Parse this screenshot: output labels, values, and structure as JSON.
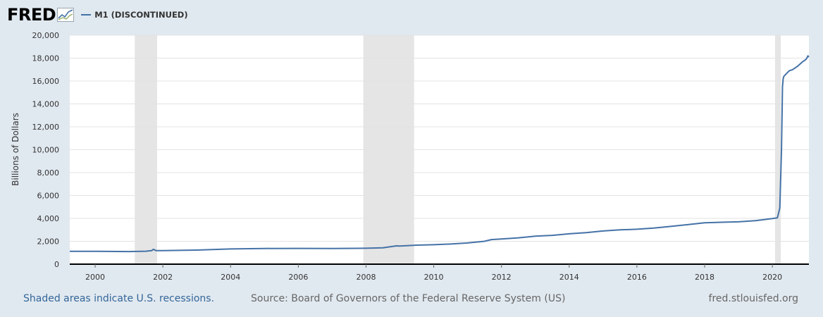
{
  "header": {
    "logo_text": "FRED",
    "logo_icon": "chart-line-icon",
    "series_label": "M1 (DISCONTINUED)",
    "series_color": "#4572a7"
  },
  "colors": {
    "background": "#e1e9f0",
    "plot_bg": "#ffffff",
    "recession": "#e5e5e5",
    "grid": "#e3e3e3",
    "line": "#4572a7",
    "link": "#336699",
    "footer_text": "#666666"
  },
  "footer": {
    "recessions_note": "Shaded areas indicate U.S. recessions.",
    "source": "Source: Board of Governors of the Federal Reserve System (US)",
    "site": "fred.stlouisfed.org"
  },
  "chart_data": {
    "type": "line",
    "title": "",
    "xlabel": "",
    "ylabel": "Billions of Dollars",
    "xlim": [
      1999.25,
      2021.08
    ],
    "ylim": [
      0,
      20000
    ],
    "grid": true,
    "legend": "top-left",
    "y_ticks": [
      0,
      2000,
      4000,
      6000,
      8000,
      10000,
      12000,
      14000,
      16000,
      18000,
      20000
    ],
    "y_tick_labels": [
      "0",
      "2,000",
      "4,000",
      "6,000",
      "8,000",
      "10,000",
      "12,000",
      "14,000",
      "16,000",
      "18,000",
      "20,000"
    ],
    "x_ticks": [
      2000,
      2002,
      2004,
      2006,
      2008,
      2010,
      2012,
      2014,
      2016,
      2018,
      2020
    ],
    "x_tick_labels": [
      "2000",
      "2002",
      "2004",
      "2006",
      "2008",
      "2010",
      "2012",
      "2014",
      "2016",
      "2018",
      "2020"
    ],
    "recessions": [
      [
        2001.17,
        2001.83
      ],
      [
        2007.92,
        2009.42
      ],
      [
        2020.08,
        2020.25
      ]
    ],
    "series": [
      {
        "name": "M1 (DISCONTINUED)",
        "x": [
          1999.25,
          2000.0,
          2001.0,
          2001.5,
          2001.67,
          2001.72,
          2001.8,
          2002.0,
          2003.0,
          2004.0,
          2005.0,
          2006.0,
          2007.0,
          2008.0,
          2008.5,
          2008.9,
          2009.0,
          2009.5,
          2010.0,
          2010.5,
          2011.0,
          2011.5,
          2011.7,
          2012.0,
          2012.5,
          2013.0,
          2013.5,
          2014.0,
          2014.5,
          2015.0,
          2015.5,
          2016.0,
          2016.5,
          2017.0,
          2017.5,
          2018.0,
          2018.5,
          2019.0,
          2019.5,
          2020.0,
          2020.15,
          2020.22,
          2020.27,
          2020.3,
          2020.32,
          2020.34,
          2020.4,
          2020.5,
          2020.6,
          2020.75,
          2020.9,
          2021.0,
          2021.05,
          2021.08
        ],
        "y": [
          1120,
          1120,
          1100,
          1130,
          1180,
          1300,
          1180,
          1190,
          1230,
          1330,
          1370,
          1380,
          1370,
          1390,
          1430,
          1600,
          1580,
          1660,
          1700,
          1760,
          1850,
          2000,
          2150,
          2200,
          2300,
          2450,
          2520,
          2650,
          2750,
          2900,
          3000,
          3050,
          3150,
          3300,
          3450,
          3620,
          3660,
          3700,
          3800,
          3980,
          4050,
          4900,
          10000,
          15500,
          16200,
          16400,
          16600,
          16900,
          17000,
          17300,
          17700,
          17900,
          18200,
          18100
        ]
      }
    ]
  }
}
